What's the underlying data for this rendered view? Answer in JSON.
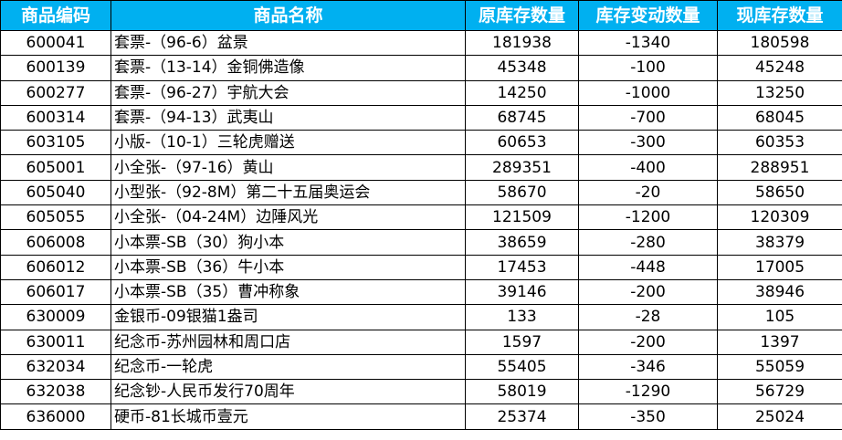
{
  "header_fill_color": "#00b0f0",
  "columns": [
    "商品编码",
    "商品名称",
    "原库存数量",
    "库存变动数量",
    "现库存数量"
  ],
  "rows": [
    [
      "600041",
      "套票-（96-6）盆景",
      "181938",
      "-1340",
      "180598"
    ],
    [
      "600139",
      "套票-（13-14）金铜佛造像",
      "45348",
      "-100",
      "45248"
    ],
    [
      "600277",
      "套票-（96-27）宇航大会",
      "14250",
      "-1000",
      "13250"
    ],
    [
      "600314",
      "套票-（94-13）武夷山",
      "68745",
      "-700",
      "68045"
    ],
    [
      "603105",
      "小版-（10-1）三轮虎赠送",
      "60653",
      "-300",
      "60353"
    ],
    [
      "605001",
      "小全张-（97-16）黄山",
      "289351",
      "-400",
      "288951"
    ],
    [
      "605040",
      "小型张-（92-8M）第二十五届奥运会",
      "58670",
      "-20",
      "58650"
    ],
    [
      "605055",
      "小全张-（04-24M）边陲风光",
      "121509",
      "-1200",
      "120309"
    ],
    [
      "606008",
      "小本票-SB（30）狗小本",
      "38659",
      "-280",
      "38379"
    ],
    [
      "606012",
      "小本票-SB（36）牛小本",
      "17453",
      "-448",
      "17005"
    ],
    [
      "606017",
      "小本票-SB（35）曹冲称象",
      "39146",
      "-200",
      "38946"
    ],
    [
      "630009",
      "金银币-09银猫1盎司",
      "133",
      "-28",
      "105"
    ],
    [
      "630011",
      "纪念币-苏州园林和周口店",
      "1597",
      "-200",
      "1397"
    ],
    [
      "632034",
      "纪念币-一轮虎",
      "55405",
      "-346",
      "55059"
    ],
    [
      "632038",
      "纪念钞-人民币发行70周年",
      "58019",
      "-1290",
      "56729"
    ],
    [
      "636000",
      "硬币-81长城币壹元",
      "25374",
      "-350",
      "25024"
    ]
  ]
}
